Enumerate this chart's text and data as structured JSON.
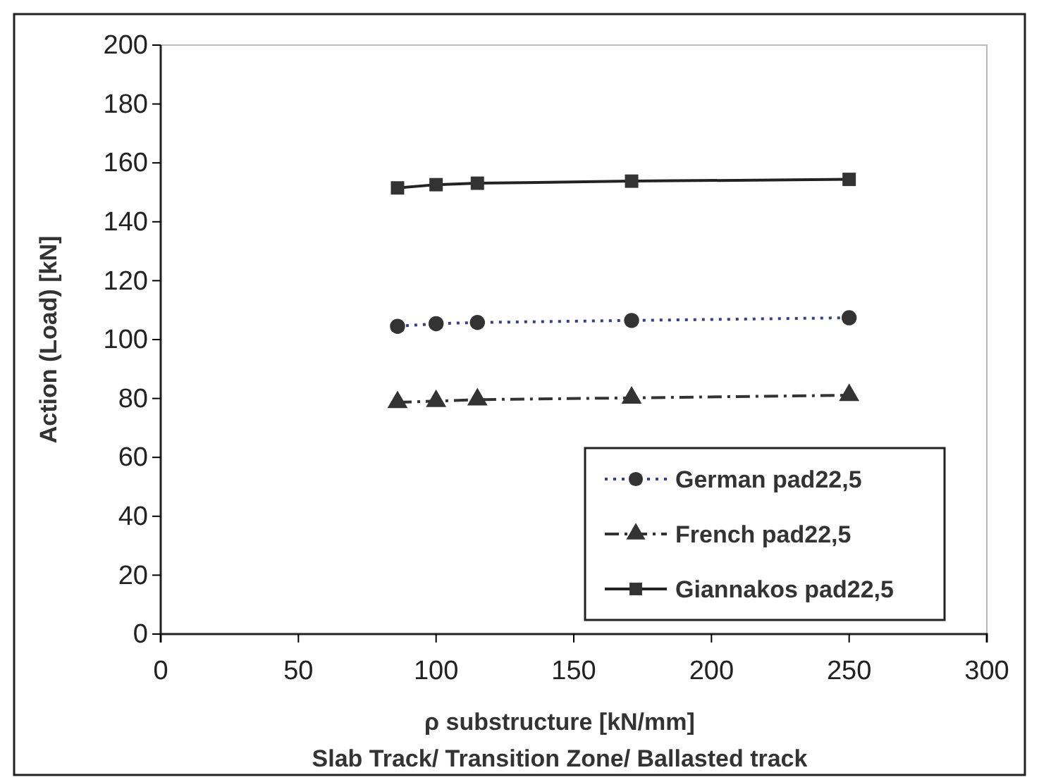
{
  "chart_data": {
    "type": "line",
    "xlabel": "ρ substructure [kN/mm]\nSlab Track/ Transition Zone/ Ballasted track",
    "ylabel": "Action (Load)  [kN]",
    "xlim": [
      0,
      300
    ],
    "xticks": [
      0,
      50,
      100,
      150,
      200,
      250,
      300
    ],
    "ylim": [
      0,
      200
    ],
    "yticks": [
      0,
      20,
      40,
      60,
      80,
      100,
      120,
      140,
      160,
      180,
      200
    ],
    "grid": false,
    "legend": "bottom right",
    "series": [
      {
        "name": "German pad22,5",
        "color": "#34408a",
        "marker": "circle",
        "line_style": "dotted",
        "x": [
          86,
          100,
          115,
          171,
          250
        ],
        "values": [
          104.5,
          105.4,
          105.8,
          106.5,
          107.4
        ]
      },
      {
        "name": "French pad22,5",
        "color": "#333333",
        "marker": "triangle",
        "line_style": "dashed",
        "x": [
          86,
          100,
          115,
          171,
          250
        ],
        "values": [
          78.7,
          79.1,
          79.6,
          80.2,
          81.1
        ]
      },
      {
        "name": "Giannakos pad22,5",
        "color": "#222222",
        "marker": "square",
        "line_style": "solid",
        "x": [
          86,
          100,
          115,
          171,
          250
        ],
        "values": [
          151.5,
          152.6,
          153.1,
          153.8,
          154.4
        ]
      }
    ]
  }
}
